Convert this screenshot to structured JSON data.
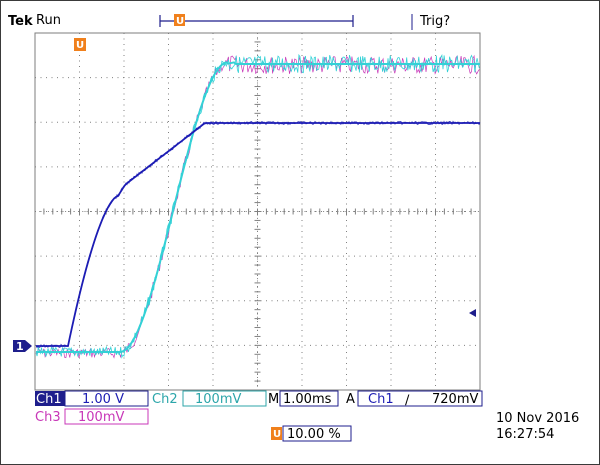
{
  "header": {
    "brand": "Tek",
    "run_state": "Run",
    "trigger_status": "Trig?",
    "trigger_marker": "U"
  },
  "screen": {
    "background": "#ffffff",
    "grid_color": "#808080",
    "divisions": {
      "horizontal": 10,
      "vertical": 8
    }
  },
  "channels": {
    "ch1": {
      "label": "Ch1",
      "scale": "1.00 V",
      "color": "#1c1cb4",
      "ground_marker": "1"
    },
    "ch2": {
      "label": "Ch2",
      "scale": "100mV",
      "color": "#33d1d6"
    },
    "ch3": {
      "label": "Ch3",
      "scale": "100mV",
      "color": "#c837b8"
    }
  },
  "timebase": {
    "label": "M",
    "value": "1.00ms"
  },
  "trigger": {
    "mode": "A",
    "source": "Ch1",
    "slope_symbol": "∕",
    "level": "720mV"
  },
  "trigger_position": {
    "marker": "U",
    "value": "10.00 %"
  },
  "datetime": {
    "date": "10 Nov 2016",
    "time": "16:27:54"
  },
  "colors": {
    "accent_orange": "#f0801c",
    "frame": "#1e1e8c"
  }
}
